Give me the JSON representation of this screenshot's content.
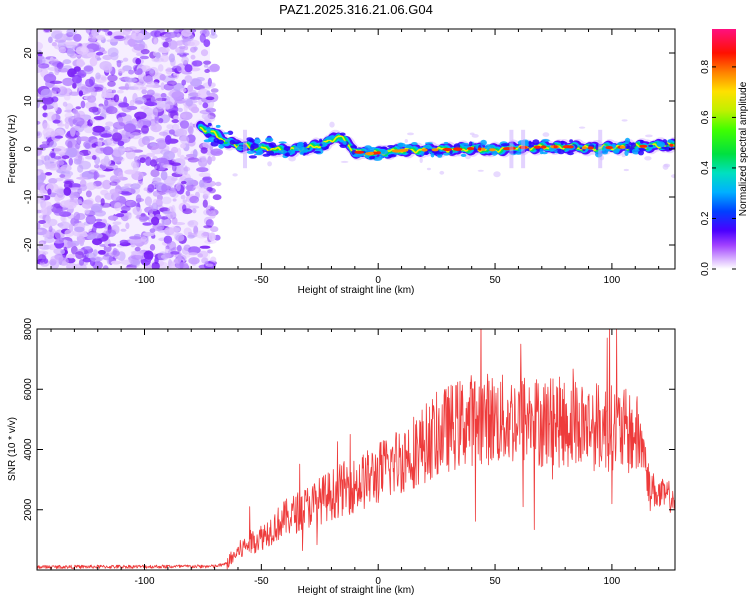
{
  "chart_data": [
    {
      "type": "heatmap",
      "title": "PAZ1.2025.316.21.06.G04",
      "xlabel": "Height of straight line (km)",
      "ylabel": "Frequency (Hz)",
      "xlim": [
        -146,
        127
      ],
      "ylim": [
        -25,
        25
      ],
      "xticks": [
        -100,
        -50,
        0,
        50,
        100
      ],
      "yticks": [
        -20,
        -10,
        0,
        10,
        20
      ],
      "colorbar": {
        "label": "Normalized spectral amplitude",
        "range": [
          0.0,
          0.95
        ],
        "ticks": [
          0.0,
          0.2,
          0.4,
          0.6,
          0.8
        ],
        "tick_labels": [
          "0.0",
          "0.2",
          "0.4",
          "0.6",
          "0.8"
        ]
      },
      "noise_region_x": [
        -146,
        -72
      ],
      "ridge": {
        "x": [
          -76,
          -70,
          -65,
          -60,
          -55,
          -50,
          -45,
          -40,
          -35,
          -30,
          -25,
          -20,
          -17,
          -14,
          -10,
          -5,
          0,
          10,
          20,
          30,
          40,
          50,
          60,
          70,
          80,
          90,
          100,
          110,
          120,
          127
        ],
        "frequency": [
          4.5,
          3.2,
          1.5,
          0.8,
          0.5,
          0.2,
          0.0,
          -0.4,
          0.0,
          0.2,
          0.8,
          1.8,
          2.8,
          1.5,
          -0.5,
          -1.0,
          -0.8,
          -0.3,
          -0.2,
          -0.1,
          0.1,
          -0.2,
          0.3,
          0.4,
          0.5,
          0.2,
          0.3,
          0.5,
          0.7,
          0.8
        ]
      }
    },
    {
      "type": "line",
      "xlabel": "Height of straight line (km)",
      "ylabel": "SNR (10 * v/v)",
      "xlim": [
        -146,
        127
      ],
      "ylim": [
        0,
        8000
      ],
      "xticks": [
        -100,
        -50,
        0,
        50,
        100
      ],
      "yticks": [
        2000,
        4000,
        6000,
        8000
      ],
      "series": [
        {
          "name": "SNR",
          "color": "#ee3b3b",
          "envelope_x": [
            -146,
            -70,
            -65,
            -60,
            -55,
            -50,
            -45,
            -40,
            -35,
            -30,
            -25,
            -20,
            -15,
            -10,
            -5,
            0,
            5,
            10,
            15,
            20,
            25,
            30,
            35,
            40,
            45,
            50,
            55,
            60,
            65,
            70,
            75,
            80,
            85,
            90,
            95,
            100,
            105,
            110,
            113,
            116,
            120,
            127
          ],
          "envelope_y": [
            100,
            120,
            200,
            600,
            900,
            1100,
            1400,
            1700,
            1900,
            2100,
            2300,
            2500,
            2700,
            2800,
            3000,
            3200,
            3450,
            3700,
            3950,
            4200,
            4500,
            4700,
            4850,
            5000,
            5050,
            5000,
            4950,
            5050,
            5000,
            4900,
            4950,
            4850,
            4900,
            4800,
            4750,
            4700,
            4600,
            4500,
            4200,
            2800,
            2500,
            2400
          ],
          "spikes": [
            {
              "x": 61,
              "y": 7500
            },
            {
              "x": 62,
              "y": 2100
            },
            {
              "x": 98,
              "y": 7700
            },
            {
              "x": 99,
              "y": 8100
            },
            {
              "x": 102,
              "y": 8000
            },
            {
              "x": 100,
              "y": 2200
            },
            {
              "x": -12,
              "y": 4500
            },
            {
              "x": -55,
              "y": 2100
            }
          ]
        }
      ]
    }
  ]
}
